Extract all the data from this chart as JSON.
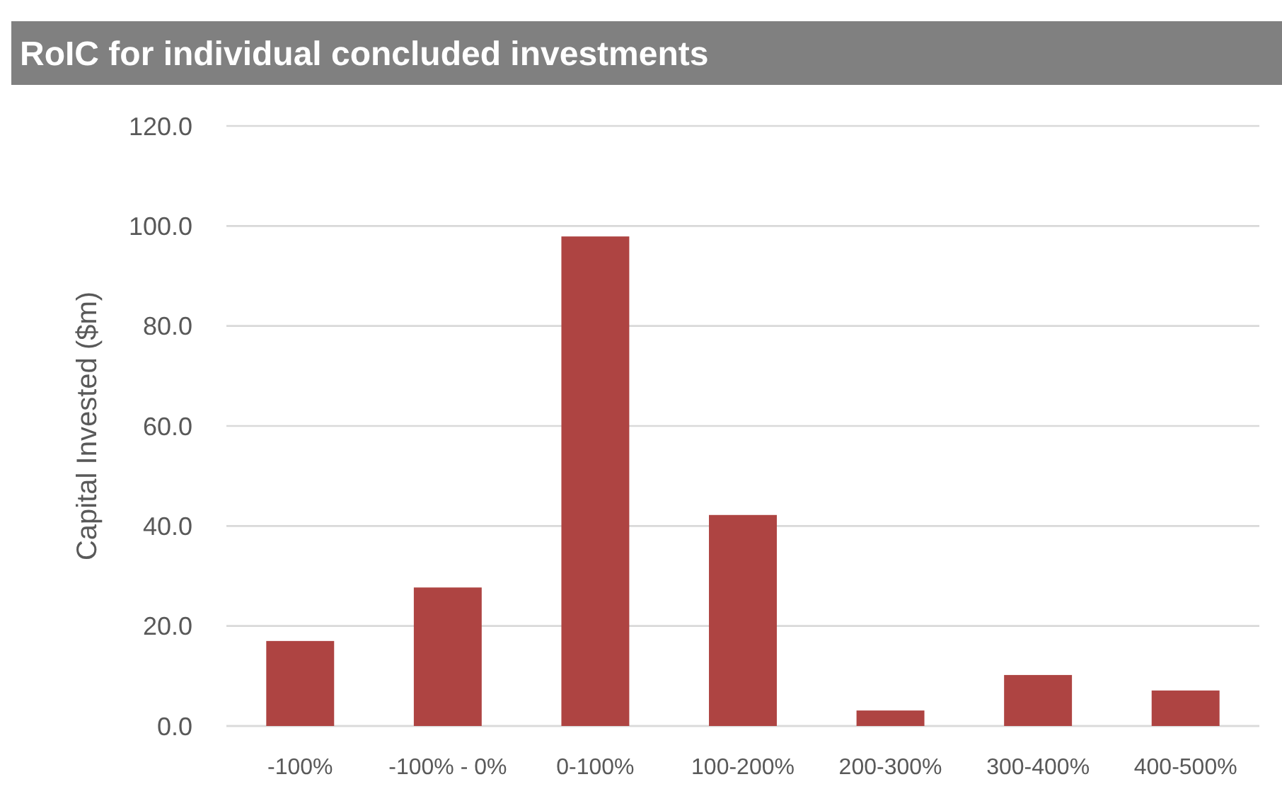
{
  "chart_data": {
    "type": "bar",
    "title": "RoIC for individual concluded investments",
    "ylabel": "Capital Invested ($m)",
    "categories": [
      "-100%",
      "-100% - 0%",
      "0-100%",
      "100-200%",
      "200-300%",
      "300-400%",
      "400-500%"
    ],
    "values": [
      17,
      27.7,
      97.9,
      42.2,
      3.1,
      10.2,
      7.1
    ],
    "color": "#ae4442",
    "ylim": [
      0,
      120
    ],
    "yticks": [
      {
        "value": 0,
        "label": "0.0"
      },
      {
        "value": 20,
        "label": "20.0"
      },
      {
        "value": 40,
        "label": "40.0"
      },
      {
        "value": 60,
        "label": "60.0"
      },
      {
        "value": 80,
        "label": "80.0"
      },
      {
        "value": 100,
        "label": "100.0"
      },
      {
        "value": 120,
        "label": "120.0"
      }
    ],
    "grid": true
  }
}
